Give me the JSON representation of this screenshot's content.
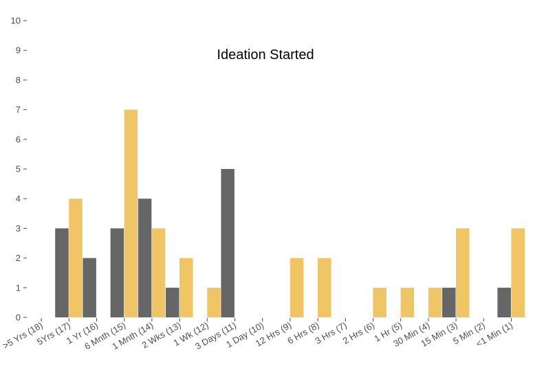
{
  "chart_data": {
    "type": "bar",
    "title": "Ideation Started",
    "xlabel": "",
    "ylabel": "",
    "ylim": [
      0,
      10
    ],
    "yticks": [
      0,
      1,
      2,
      3,
      4,
      5,
      6,
      7,
      8,
      9,
      10
    ],
    "categories": [
      ">5 Yrs (18)",
      "5Yrs (17)",
      "1 Yr (16)",
      "6 Mnth (15)",
      "1 Mnth (14)",
      "2 Wks (13)",
      "1 Wk (12)",
      "3 Days (11)",
      "1 Day (10)",
      "12 Hrs (9)",
      "6 Hrs (8)",
      "3 Hrs (7)",
      "2 Hrs (6)",
      "1 Hr (5)",
      "30 Min (4)",
      "15 Min (3)",
      "5 Min (2)",
      "<1 Min (1)"
    ],
    "series": [
      {
        "color": "#666666",
        "values": [
          0,
          3,
          2,
          3,
          4,
          1,
          0,
          5,
          0,
          0,
          0,
          0,
          0,
          0,
          0,
          1,
          0,
          1
        ]
      },
      {
        "color": "#f0c566",
        "values": [
          0,
          4,
          0,
          7,
          3,
          2,
          1,
          0,
          0,
          2,
          2,
          0,
          1,
          1,
          1,
          3,
          0,
          3
        ]
      }
    ],
    "grid": false,
    "legend": "none"
  }
}
